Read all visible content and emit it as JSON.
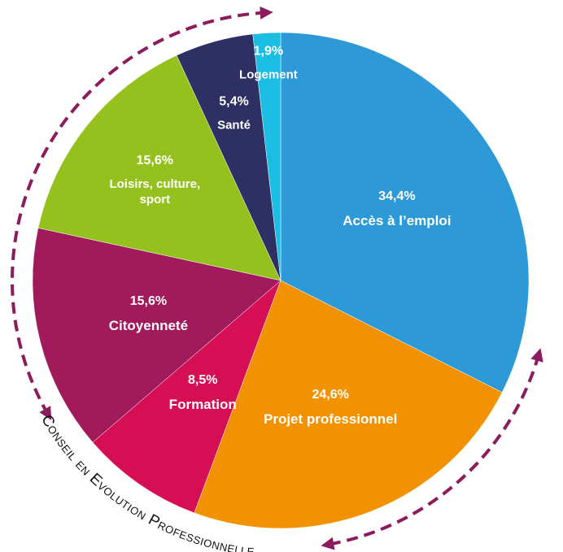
{
  "chart_data": {
    "type": "pie",
    "categories": [
      "Accès à l’emploi",
      "Projet professionnel",
      "Formation",
      "Citoyenneté",
      "Loisirs, culture, sport",
      "Santé",
      "Logement"
    ],
    "values": [
      34.4,
      24.6,
      8.5,
      15.6,
      15.6,
      5.4,
      1.9
    ],
    "value_labels": [
      "34,4%",
      "24,6%",
      "8,5%",
      "15,6%",
      "15,6%",
      "5,4%",
      "1,9%"
    ],
    "colors": [
      "#2d9ad7",
      "#f39200",
      "#d60f55",
      "#a11a5b",
      "#95c11f",
      "#2e2f62",
      "#1bbde2"
    ],
    "annotation": "Conseil en Evolution Professionnelle"
  }
}
